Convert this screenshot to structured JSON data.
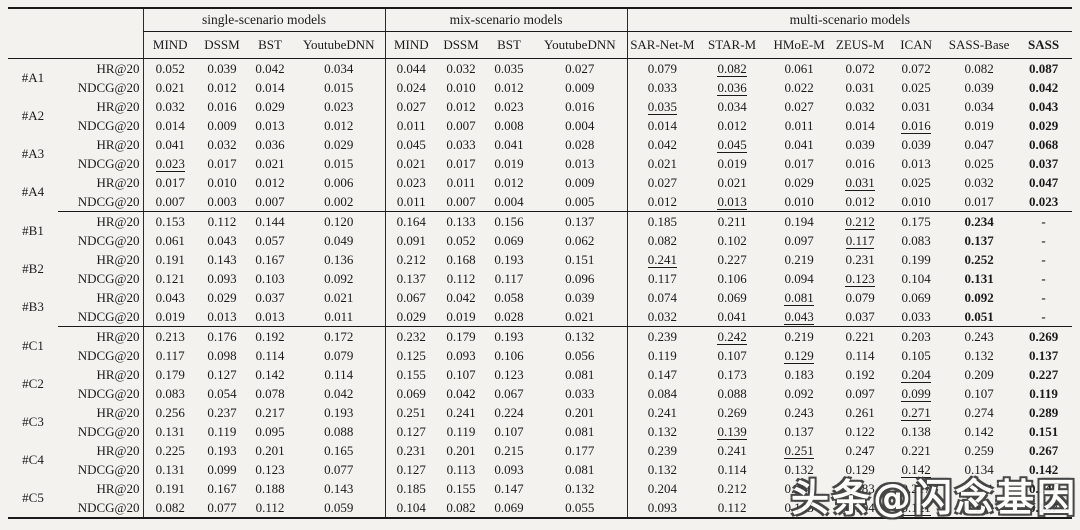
{
  "colors": {
    "background": "#f3f2ef",
    "text": "#1a1a1a",
    "rule": "#1a1a1a"
  },
  "watermark": {
    "text": "头条@闪念基因"
  },
  "table": {
    "groups": [
      {
        "label": "single-scenario models",
        "span": 4
      },
      {
        "label": "mix-scenario models",
        "span": 4
      },
      {
        "label": "multi-scenario models",
        "span": 7
      }
    ],
    "columns": [
      "MIND",
      "DSSM",
      "BST",
      "YoutubeDNN",
      "MIND",
      "DSSM",
      "BST",
      "YoutubeDNN",
      "SAR-Net-M",
      "STAR-M",
      "HMoE-M",
      "ZEUS-M",
      "ICAN",
      "SASS-Base",
      "SASS"
    ],
    "metric_labels": [
      "HR@20",
      "NDCG@20"
    ],
    "legend": {
      "bold_marker": "*",
      "underline_marker": "_"
    },
    "rows": [
      {
        "scenario": "#A1",
        "section_end": false,
        "metrics": [
          {
            "label": "HR@20",
            "cells": [
              "0.052",
              "0.039",
              "0.042",
              "0.034",
              "0.044",
              "0.032",
              "0.035",
              "0.027",
              "0.079",
              "_0.082",
              "0.061",
              "0.072",
              "0.072",
              "0.082",
              "*0.087"
            ]
          },
          {
            "label": "NDCG@20",
            "cells": [
              "0.021",
              "0.012",
              "0.014",
              "0.015",
              "0.024",
              "0.010",
              "0.012",
              "0.009",
              "0.033",
              "_0.036",
              "0.022",
              "0.031",
              "0.025",
              "0.039",
              "*0.042"
            ]
          }
        ]
      },
      {
        "scenario": "#A2",
        "section_end": false,
        "metrics": [
          {
            "label": "HR@20",
            "cells": [
              "0.032",
              "0.016",
              "0.029",
              "0.023",
              "0.027",
              "0.012",
              "0.023",
              "0.016",
              "_0.035",
              "0.034",
              "0.027",
              "0.032",
              "0.031",
              "0.034",
              "*0.043"
            ]
          },
          {
            "label": "NDCG@20",
            "cells": [
              "0.014",
              "0.009",
              "0.013",
              "0.012",
              "0.011",
              "0.007",
              "0.008",
              "0.004",
              "0.014",
              "0.012",
              "0.011",
              "0.014",
              "_0.016",
              "0.019",
              "*0.029"
            ]
          }
        ]
      },
      {
        "scenario": "#A3",
        "section_end": false,
        "metrics": [
          {
            "label": "HR@20",
            "cells": [
              "0.041",
              "0.032",
              "0.036",
              "0.029",
              "0.045",
              "0.033",
              "0.041",
              "0.028",
              "0.042",
              "_0.045",
              "0.041",
              "0.039",
              "0.039",
              "0.047",
              "*0.068"
            ]
          },
          {
            "label": "NDCG@20",
            "cells": [
              "_0.023",
              "0.017",
              "0.021",
              "0.015",
              "0.021",
              "0.017",
              "0.019",
              "0.013",
              "0.021",
              "0.019",
              "0.017",
              "0.016",
              "0.013",
              "0.025",
              "*0.037"
            ]
          }
        ]
      },
      {
        "scenario": "#A4",
        "section_end": true,
        "metrics": [
          {
            "label": "HR@20",
            "cells": [
              "0.017",
              "0.010",
              "0.012",
              "0.006",
              "0.023",
              "0.011",
              "0.012",
              "0.009",
              "0.027",
              "0.021",
              "0.029",
              "_0.031",
              "0.025",
              "0.032",
              "*0.047"
            ]
          },
          {
            "label": "NDCG@20",
            "cells": [
              "0.007",
              "0.003",
              "0.007",
              "0.002",
              "0.011",
              "0.007",
              "0.004",
              "0.005",
              "0.012",
              "_0.013",
              "0.010",
              "0.012",
              "0.010",
              "0.017",
              "*0.023"
            ]
          }
        ]
      },
      {
        "scenario": "#B1",
        "section_end": false,
        "metrics": [
          {
            "label": "HR@20",
            "cells": [
              "0.153",
              "0.112",
              "0.144",
              "0.120",
              "0.164",
              "0.133",
              "0.156",
              "0.137",
              "0.185",
              "0.211",
              "0.194",
              "_0.212",
              "0.175",
              "*0.234",
              "*-"
            ]
          },
          {
            "label": "NDCG@20",
            "cells": [
              "0.061",
              "0.043",
              "0.057",
              "0.049",
              "0.091",
              "0.052",
              "0.069",
              "0.062",
              "0.082",
              "0.102",
              "0.097",
              "_0.117",
              "0.083",
              "*0.137",
              "*-"
            ]
          }
        ]
      },
      {
        "scenario": "#B2",
        "section_end": false,
        "metrics": [
          {
            "label": "HR@20",
            "cells": [
              "0.191",
              "0.143",
              "0.167",
              "0.136",
              "0.212",
              "0.168",
              "0.193",
              "0.151",
              "_0.241",
              "0.227",
              "0.219",
              "0.231",
              "0.199",
              "*0.252",
              "*-"
            ]
          },
          {
            "label": "NDCG@20",
            "cells": [
              "0.121",
              "0.093",
              "0.103",
              "0.092",
              "0.137",
              "0.112",
              "0.117",
              "0.096",
              "0.117",
              "0.106",
              "0.094",
              "_0.123",
              "0.104",
              "*0.131",
              "*-"
            ]
          }
        ]
      },
      {
        "scenario": "#B3",
        "section_end": true,
        "metrics": [
          {
            "label": "HR@20",
            "cells": [
              "0.043",
              "0.029",
              "0.037",
              "0.021",
              "0.067",
              "0.042",
              "0.058",
              "0.039",
              "0.074",
              "0.069",
              "_0.081",
              "0.079",
              "0.069",
              "*0.092",
              "*-"
            ]
          },
          {
            "label": "NDCG@20",
            "cells": [
              "0.019",
              "0.013",
              "0.013",
              "0.011",
              "0.029",
              "0.019",
              "0.028",
              "0.021",
              "0.032",
              "0.041",
              "_0.043",
              "0.037",
              "0.033",
              "*0.051",
              "*-"
            ]
          }
        ]
      },
      {
        "scenario": "#C1",
        "section_end": false,
        "metrics": [
          {
            "label": "HR@20",
            "cells": [
              "0.213",
              "0.176",
              "0.192",
              "0.172",
              "0.232",
              "0.179",
              "0.193",
              "0.132",
              "0.239",
              "_0.242",
              "0.219",
              "0.221",
              "0.203",
              "0.243",
              "*0.269"
            ]
          },
          {
            "label": "NDCG@20",
            "cells": [
              "0.117",
              "0.098",
              "0.114",
              "0.079",
              "0.125",
              "0.093",
              "0.106",
              "0.056",
              "0.119",
              "0.107",
              "_0.129",
              "0.114",
              "0.105",
              "0.132",
              "*0.137"
            ]
          }
        ]
      },
      {
        "scenario": "#C2",
        "section_end": false,
        "metrics": [
          {
            "label": "HR@20",
            "cells": [
              "0.179",
              "0.127",
              "0.142",
              "0.114",
              "0.155",
              "0.107",
              "0.123",
              "0.081",
              "0.147",
              "0.173",
              "0.183",
              "0.192",
              "_0.204",
              "0.209",
              "*0.227"
            ]
          },
          {
            "label": "NDCG@20",
            "cells": [
              "0.083",
              "0.054",
              "0.078",
              "0.042",
              "0.069",
              "0.042",
              "0.067",
              "0.033",
              "0.084",
              "0.088",
              "0.092",
              "0.097",
              "_0.099",
              "0.107",
              "*0.119"
            ]
          }
        ]
      },
      {
        "scenario": "#C3",
        "section_end": false,
        "metrics": [
          {
            "label": "HR@20",
            "cells": [
              "0.256",
              "0.237",
              "0.217",
              "0.193",
              "0.251",
              "0.241",
              "0.224",
              "0.201",
              "0.241",
              "0.269",
              "0.243",
              "0.261",
              "_0.271",
              "0.274",
              "*0.289"
            ]
          },
          {
            "label": "NDCG@20",
            "cells": [
              "0.131",
              "0.119",
              "0.095",
              "0.088",
              "0.127",
              "0.119",
              "0.107",
              "0.081",
              "0.132",
              "_0.139",
              "0.137",
              "0.122",
              "0.138",
              "0.142",
              "*0.151"
            ]
          }
        ]
      },
      {
        "scenario": "#C4",
        "section_end": false,
        "metrics": [
          {
            "label": "HR@20",
            "cells": [
              "0.225",
              "0.193",
              "0.201",
              "0.165",
              "0.231",
              "0.201",
              "0.215",
              "0.177",
              "0.239",
              "0.241",
              "_0.251",
              "0.247",
              "0.221",
              "0.259",
              "*0.267"
            ]
          },
          {
            "label": "NDCG@20",
            "cells": [
              "0.131",
              "0.099",
              "0.123",
              "0.077",
              "0.127",
              "0.113",
              "0.093",
              "0.081",
              "0.132",
              "0.114",
              "0.132",
              "0.129",
              "_0.142",
              "0.134",
              "*0.142"
            ]
          }
        ]
      },
      {
        "scenario": "#C5",
        "section_end": false,
        "metrics": [
          {
            "label": "HR@20",
            "cells": [
              "0.191",
              "0.167",
              "0.188",
              "0.143",
              "0.185",
              "0.155",
              "0.147",
              "0.132",
              "0.204",
              "0.212",
              "0.209",
              "0.183",
              "0.217",
              "0.231",
              "*0.247"
            ]
          },
          {
            "label": "NDCG@20",
            "cells": [
              "0.082",
              "0.077",
              "0.112",
              "0.059",
              "0.104",
              "0.082",
              "0.069",
              "0.055",
              "0.093",
              "0.112",
              "0.103",
              "0.104",
              "_0.121",
              "0.132",
              "*0.137"
            ]
          }
        ]
      }
    ]
  }
}
